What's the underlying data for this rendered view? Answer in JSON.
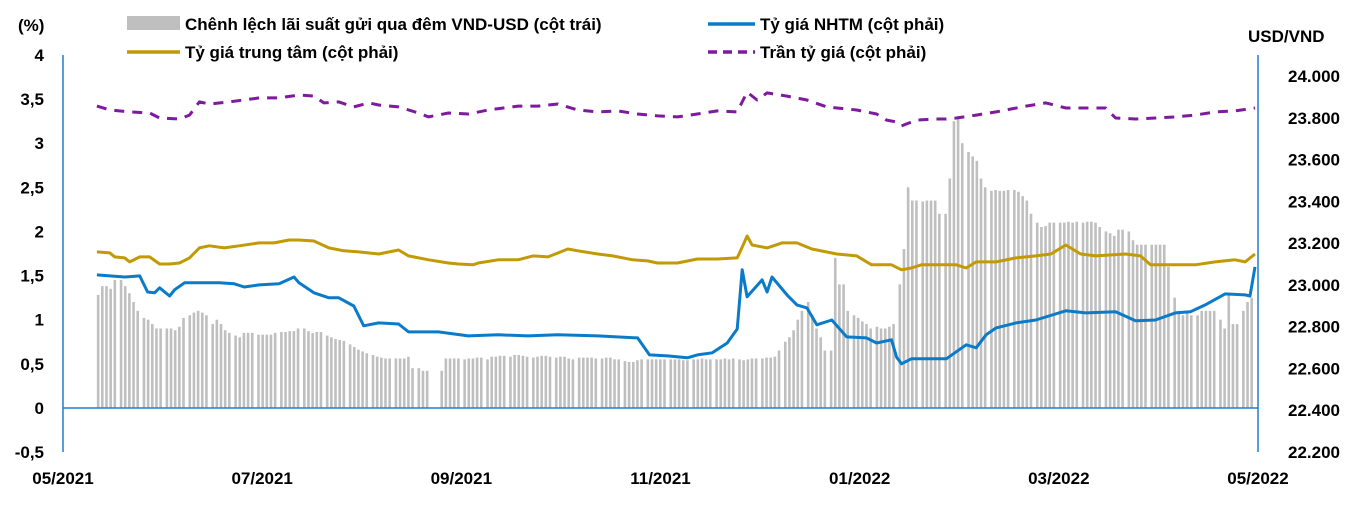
{
  "chart_data": {
    "type": "bar+line",
    "title": "",
    "left_axis": {
      "label": "(%)",
      "range": [
        -0.5,
        4
      ],
      "ticks": [
        "-0,5",
        "0",
        "0,5",
        "1",
        "1,5",
        "2",
        "2,5",
        "3",
        "3,5",
        "4"
      ],
      "tick_values": [
        -0.5,
        0,
        0.5,
        1,
        1.5,
        2,
        2.5,
        3,
        3.5,
        4
      ]
    },
    "right_axis": {
      "label": "USD/VND",
      "range": [
        22200,
        24000
      ],
      "ticks": [
        "22.200",
        "22.400",
        "22.600",
        "22.800",
        "23.000",
        "23.200",
        "23.400",
        "23.600",
        "23.800",
        "24.000"
      ],
      "tick_values": [
        22200,
        22400,
        22600,
        22800,
        23000,
        23200,
        23400,
        23600,
        23800,
        24000
      ]
    },
    "x_axis": {
      "unit": "months since 05/2021",
      "range": [
        0,
        12
      ],
      "ticks": [
        "05/2021",
        "07/2021",
        "09/2021",
        "11/2021",
        "01/2022",
        "03/2022",
        "05/2022"
      ],
      "tick_values": [
        0,
        2,
        4,
        6,
        8,
        10,
        12
      ]
    },
    "legend": {
      "placement": "top",
      "items": [
        {
          "label": "Chênh lệch lãi suất gửi qua đêm VND-USD (cột trái)",
          "color": "#bfbfbf",
          "style": "bar"
        },
        {
          "label": "Tỷ giá NHTM (cột phải)",
          "color": "#0a7bc8",
          "style": "solid"
        },
        {
          "label": "Tỷ giá trung tâm (cột phải)",
          "color": "#c19a06",
          "style": "solid"
        },
        {
          "label": "Trần tỷ giá (cột phải)",
          "color": "#7f1a9e",
          "style": "dashed"
        }
      ]
    },
    "bars": {
      "name": "Chênh lệch lãi suất gửi qua đêm VND-USD (cột trái)",
      "axis": "left",
      "first_week_month": 0.35,
      "week_step_month": 0.23,
      "weekly_daily_values": [
        [
          1.28,
          1.38,
          1.38,
          1.35,
          1.45
        ],
        [
          1.45,
          1.38,
          1.3,
          1.2,
          1.1
        ],
        [
          1.02,
          1.0,
          0.95,
          0.9,
          0.9
        ],
        [
          0.9,
          0.9,
          0.88,
          0.92,
          1.02
        ],
        [
          1.05,
          1.08,
          1.1,
          1.08,
          1.05
        ],
        [
          0.95,
          1.0,
          0.95,
          0.88,
          0.85
        ],
        [
          0.82,
          0.8,
          0.85,
          0.85,
          0.85
        ],
        [
          0.83,
          0.83,
          0.83,
          0.83,
          0.85
        ],
        [
          0.86,
          0.86,
          0.87,
          0.87,
          0.9
        ],
        [
          0.9,
          0.87,
          0.85,
          0.86,
          0.86
        ],
        [
          0.82,
          0.8,
          0.78,
          0.77,
          0.76
        ],
        [
          0.72,
          0.69,
          0.66,
          0.64,
          0.62
        ],
        [
          0.6,
          0.58,
          0.57,
          0.56,
          0.56
        ],
        [
          0.56,
          0.56,
          0.56,
          0.58,
          0.45
        ],
        [
          0.45,
          0.42,
          0.42
        ],
        [
          0.42,
          0.56,
          0.56,
          0.56,
          0.56
        ],
        [
          0.55,
          0.56,
          0.56,
          0.57,
          0.57
        ],
        [
          0.55,
          0.58,
          0.58,
          0.59,
          0.59
        ],
        [
          0.58,
          0.6,
          0.6,
          0.59,
          0.58
        ],
        [
          0.57,
          0.58,
          0.59,
          0.59,
          0.58
        ],
        [
          0.57,
          0.58,
          0.58,
          0.56,
          0.55
        ],
        [
          0.57,
          0.57,
          0.57,
          0.57,
          0.56
        ],
        [
          0.56,
          0.57,
          0.57,
          0.55,
          0.55
        ],
        [
          0.53,
          0.52,
          0.52,
          0.54,
          0.55
        ],
        [
          0.55,
          0.55,
          0.55,
          0.55,
          0.55
        ],
        [
          0.55,
          0.55,
          0.55,
          0.54,
          0.54
        ],
        [
          0.55,
          0.55,
          0.56,
          0.55,
          0.55
        ],
        [
          0.55,
          0.55,
          0.56,
          0.55,
          0.56
        ],
        [
          0.55,
          0.54,
          0.55,
          0.56,
          0.56
        ],
        [
          0.56,
          0.57,
          0.57,
          0.58,
          0.65
        ],
        [
          0.75,
          0.8,
          0.88,
          1.0,
          1.1
        ],
        [
          1.2,
          1.05,
          0.9,
          0.8,
          0.65
        ],
        [
          0.65,
          1.7,
          1.4,
          1.4,
          1.1
        ],
        [
          1.05,
          1.02,
          0.98,
          0.95,
          0.9
        ],
        [
          0.92,
          0.9,
          0.9,
          0.92,
          0.95
        ],
        [
          1.4,
          1.8,
          2.5,
          2.35,
          2.35
        ],
        [
          2.34,
          2.35,
          2.35,
          2.35,
          2.2
        ],
        [
          2.2,
          2.6,
          3.25,
          3.3,
          3.0
        ],
        [
          2.9,
          2.85,
          2.8,
          2.6,
          2.5
        ],
        [
          2.46,
          2.47,
          2.46,
          2.46,
          2.47
        ],
        [
          2.47,
          2.45,
          2.4,
          2.35,
          2.2
        ],
        [
          2.1,
          2.05,
          2.06,
          2.1,
          2.1
        ],
        [
          2.1,
          2.1,
          2.11,
          2.1,
          2.11
        ],
        [
          2.1,
          2.11,
          2.11,
          2.1,
          2.05
        ],
        [
          2.0,
          1.98,
          1.95,
          2.02,
          2.02
        ],
        [
          2.0,
          1.9,
          1.85,
          1.85,
          1.85
        ],
        [
          1.85,
          1.85,
          1.85,
          1.85,
          1.6
        ],
        [
          1.25,
          1.1,
          1.05,
          1.1,
          1.05
        ],
        [
          1.05,
          1.1,
          1.1,
          1.1,
          1.1
        ],
        [
          1.0,
          0.9,
          1.3,
          0.95,
          0.95
        ],
        [
          1.1,
          1.2,
          1.25
        ]
      ]
    },
    "series": [
      {
        "name": "Tỷ giá NHTM (cột phải)",
        "axis": "right",
        "x": [
          0.34,
          0.47,
          0.62,
          0.77,
          0.85,
          0.92,
          0.97,
          1.07,
          1.12,
          1.22,
          1.37,
          1.57,
          1.72,
          1.82,
          1.97,
          2.17,
          2.32,
          2.37,
          2.52,
          2.67,
          2.77,
          2.92,
          3.02,
          3.17,
          3.37,
          3.47,
          3.77,
          4.07,
          4.37,
          4.67,
          4.97,
          5.37,
          5.77,
          5.89,
          6.07,
          6.27,
          6.37,
          6.52,
          6.67,
          6.77,
          6.82,
          6.87,
          7.02,
          7.07,
          7.12,
          7.27,
          7.37,
          7.47,
          7.57,
          7.72,
          7.87,
          8.07,
          8.17,
          8.32,
          8.37,
          8.42,
          8.52,
          8.87,
          9.07,
          9.17,
          9.27,
          9.37,
          9.57,
          9.77,
          10.07,
          10.27,
          10.57,
          10.77,
          10.97,
          11.17,
          11.32,
          11.47,
          11.67,
          11.87,
          11.92,
          11.97
        ],
        "y": [
          23048,
          23043,
          23038,
          23043,
          22966,
          22962,
          22986,
          22947,
          22976,
          23010,
          23010,
          23010,
          23005,
          22990,
          23000,
          23005,
          23038,
          23010,
          22962,
          22938,
          22938,
          22899,
          22804,
          22818,
          22813,
          22775,
          22775,
          22756,
          22761,
          22756,
          22761,
          22756,
          22746,
          22665,
          22660,
          22651,
          22665,
          22675,
          22722,
          22789,
          23072,
          22943,
          23024,
          22966,
          23038,
          22952,
          22904,
          22890,
          22809,
          22832,
          22751,
          22746,
          22722,
          22737,
          22655,
          22622,
          22646,
          22646,
          22713,
          22699,
          22761,
          22794,
          22818,
          22832,
          22876,
          22866,
          22871,
          22828,
          22832,
          22866,
          22871,
          22904,
          22957,
          22952,
          22947,
          23086
        ]
      },
      {
        "name": "Tỷ giá trung tâm (cột phải)",
        "axis": "right",
        "x": [
          0.34,
          0.47,
          0.52,
          0.62,
          0.67,
          0.77,
          0.87,
          0.97,
          1.07,
          1.17,
          1.27,
          1.37,
          1.47,
          1.62,
          1.77,
          1.97,
          2.12,
          2.27,
          2.37,
          2.52,
          2.67,
          2.82,
          2.97,
          3.17,
          3.37,
          3.47,
          3.67,
          3.87,
          3.97,
          4.12,
          4.17,
          4.37,
          4.57,
          4.72,
          4.87,
          5.07,
          5.17,
          5.37,
          5.52,
          5.72,
          5.87,
          5.97,
          6.17,
          6.37,
          6.57,
          6.77,
          6.82,
          6.87,
          6.92,
          7.07,
          7.22,
          7.37,
          7.52,
          7.77,
          7.97,
          8.12,
          8.32,
          8.42,
          8.52,
          8.62,
          8.82,
          8.97,
          9.07,
          9.17,
          9.37,
          9.57,
          9.77,
          9.92,
          10.07,
          10.22,
          10.37,
          10.67,
          10.82,
          10.92,
          11.17,
          11.37,
          11.57,
          11.77,
          11.87,
          11.97
        ],
        "y": [
          23158,
          23153,
          23134,
          23129,
          23110,
          23134,
          23134,
          23100,
          23100,
          23105,
          23129,
          23177,
          23187,
          23177,
          23187,
          23201,
          23201,
          23215,
          23215,
          23210,
          23177,
          23163,
          23158,
          23148,
          23167,
          23139,
          23120,
          23105,
          23100,
          23096,
          23105,
          23120,
          23120,
          23139,
          23134,
          23172,
          23163,
          23148,
          23139,
          23120,
          23115,
          23105,
          23105,
          23124,
          23124,
          23129,
          23181,
          23234,
          23191,
          23177,
          23201,
          23201,
          23172,
          23148,
          23139,
          23096,
          23096,
          23072,
          23081,
          23096,
          23096,
          23096,
          23081,
          23110,
          23110,
          23129,
          23139,
          23148,
          23191,
          23148,
          23139,
          23148,
          23139,
          23096,
          23096,
          23096,
          23110,
          23120,
          23110,
          23148
        ]
      },
      {
        "name": "Trần tỷ giá (cột phải)",
        "axis": "right",
        "x": [
          0.34,
          0.47,
          0.67,
          0.87,
          0.97,
          1.17,
          1.27,
          1.37,
          1.47,
          1.67,
          1.97,
          2.17,
          2.37,
          2.52,
          2.62,
          2.77,
          2.92,
          3.07,
          3.17,
          3.37,
          3.57,
          3.67,
          3.87,
          4.07,
          4.27,
          4.57,
          4.77,
          4.97,
          5.17,
          5.37,
          5.57,
          5.77,
          5.97,
          6.17,
          6.37,
          6.57,
          6.77,
          6.87,
          6.97,
          7.07,
          7.27,
          7.47,
          7.67,
          7.97,
          8.17,
          8.27,
          8.37,
          8.42,
          8.57,
          8.77,
          8.87,
          8.97,
          9.17,
          9.37,
          9.67,
          9.87,
          10.07,
          10.27,
          10.47,
          10.57,
          10.77,
          10.97,
          11.17,
          11.37,
          11.57,
          11.77,
          11.97
        ],
        "y": [
          23856,
          23837,
          23828,
          23823,
          23799,
          23794,
          23813,
          23876,
          23866,
          23876,
          23895,
          23895,
          23909,
          23904,
          23871,
          23876,
          23852,
          23871,
          23861,
          23852,
          23823,
          23804,
          23823,
          23818,
          23837,
          23856,
          23856,
          23866,
          23837,
          23828,
          23833,
          23818,
          23809,
          23804,
          23818,
          23833,
          23828,
          23923,
          23885,
          23919,
          23904,
          23885,
          23852,
          23837,
          23818,
          23789,
          23780,
          23761,
          23789,
          23794,
          23794,
          23799,
          23813,
          23828,
          23856,
          23871,
          23847,
          23847,
          23847,
          23799,
          23794,
          23799,
          23804,
          23813,
          23828,
          23833,
          23847
        ]
      }
    ]
  }
}
